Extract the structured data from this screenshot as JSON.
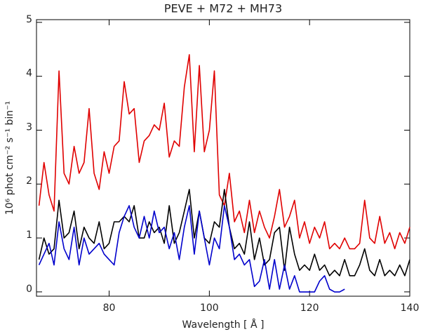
{
  "chart_data": {
    "type": "line",
    "title": "PEVE + M72 + MH73",
    "x_label": "Wavelength [ Å ]",
    "y_label": "10⁶ phot cm⁻² s⁻¹ bin⁻¹",
    "x": [
      66,
      67,
      68,
      69,
      70,
      71,
      72,
      73,
      74,
      75,
      76,
      77,
      78,
      79,
      80,
      81,
      82,
      83,
      84,
      85,
      86,
      87,
      88,
      89,
      90,
      91,
      92,
      93,
      94,
      95,
      96,
      97,
      98,
      99,
      100,
      101,
      102,
      103,
      104,
      105,
      106,
      107,
      108,
      109,
      110,
      111,
      112,
      113,
      114,
      115,
      116,
      117,
      118,
      119,
      120,
      121,
      122,
      123,
      124,
      125,
      126,
      127,
      128,
      129,
      130,
      131,
      132,
      133,
      134,
      135,
      136,
      137,
      138,
      139,
      140
    ],
    "series": [
      {
        "color": "#e00000",
        "values": [
          1.6,
          2.4,
          1.8,
          1.5,
          4.1,
          2.2,
          2.0,
          2.7,
          2.2,
          2.4,
          3.4,
          2.2,
          1.9,
          2.6,
          2.2,
          2.7,
          2.8,
          3.9,
          3.3,
          3.4,
          2.4,
          2.8,
          2.9,
          3.1,
          3.0,
          3.5,
          2.5,
          2.8,
          2.7,
          3.8,
          4.4,
          2.6,
          4.2,
          2.6,
          3.0,
          4.1,
          1.8,
          1.6,
          2.2,
          1.3,
          1.5,
          1.1,
          1.7,
          1.1,
          1.5,
          1.2,
          1.0,
          1.4,
          1.9,
          1.2,
          1.4,
          1.7,
          1.0,
          1.3,
          0.9,
          1.2,
          1.0,
          1.3,
          0.8,
          0.9,
          0.8,
          1.0,
          0.8,
          0.8,
          0.9,
          1.7,
          1.0,
          0.9,
          1.4,
          0.9,
          1.1,
          0.8,
          1.1,
          0.9,
          1.2
        ]
      },
      {
        "color": "#000000",
        "values": [
          0.6,
          1.0,
          0.7,
          0.8,
          1.7,
          1.0,
          1.1,
          1.5,
          0.8,
          1.2,
          1.0,
          0.9,
          1.3,
          0.8,
          0.9,
          1.3,
          1.3,
          1.4,
          1.3,
          1.6,
          1.0,
          1.0,
          1.3,
          1.1,
          1.2,
          0.9,
          1.6,
          0.9,
          1.1,
          1.5,
          1.9,
          1.0,
          1.5,
          1.0,
          0.9,
          1.3,
          1.2,
          1.9,
          1.2,
          0.8,
          0.9,
          0.7,
          1.3,
          0.6,
          1.0,
          0.5,
          0.6,
          1.1,
          1.2,
          0.4,
          1.2,
          0.7,
          0.4,
          0.5,
          0.4,
          0.7,
          0.4,
          0.5,
          0.3,
          0.4,
          0.3,
          0.6,
          0.3,
          0.3,
          0.5,
          0.8,
          0.4,
          0.3,
          0.6,
          0.3,
          0.4,
          0.3,
          0.5,
          0.3,
          0.6
        ]
      },
      {
        "color": "#0000cc",
        "values": [
          0.5,
          0.7,
          0.9,
          0.5,
          1.3,
          0.8,
          0.6,
          1.2,
          0.5,
          1.0,
          0.7,
          0.8,
          0.9,
          0.7,
          0.6,
          0.5,
          1.1,
          1.4,
          1.6,
          1.2,
          1.0,
          1.4,
          1.0,
          1.5,
          1.1,
          1.2,
          0.8,
          1.1,
          0.6,
          1.2,
          1.6,
          0.7,
          1.5,
          1.0,
          0.5,
          1.0,
          0.8,
          1.6,
          1.2,
          0.6,
          0.7,
          0.5,
          0.6,
          0.1,
          0.2,
          0.6,
          0.05,
          0.6,
          0.05,
          0.5,
          0.05,
          0.3,
          0.0,
          0.0,
          0.0,
          0.0,
          0.2,
          0.3,
          0.05,
          0.0,
          0.0,
          0.05,
          null,
          null,
          null,
          null,
          null,
          null,
          null,
          null,
          null,
          null,
          null,
          null,
          null
        ]
      }
    ],
    "xlim": [
      65.5,
      140
    ],
    "xticks": [
      80,
      100,
      120,
      140
    ],
    "ylim": [
      -0.08,
      5.05
    ],
    "yticks": [
      0,
      1,
      2,
      3,
      4,
      5
    ],
    "grid": false
  }
}
